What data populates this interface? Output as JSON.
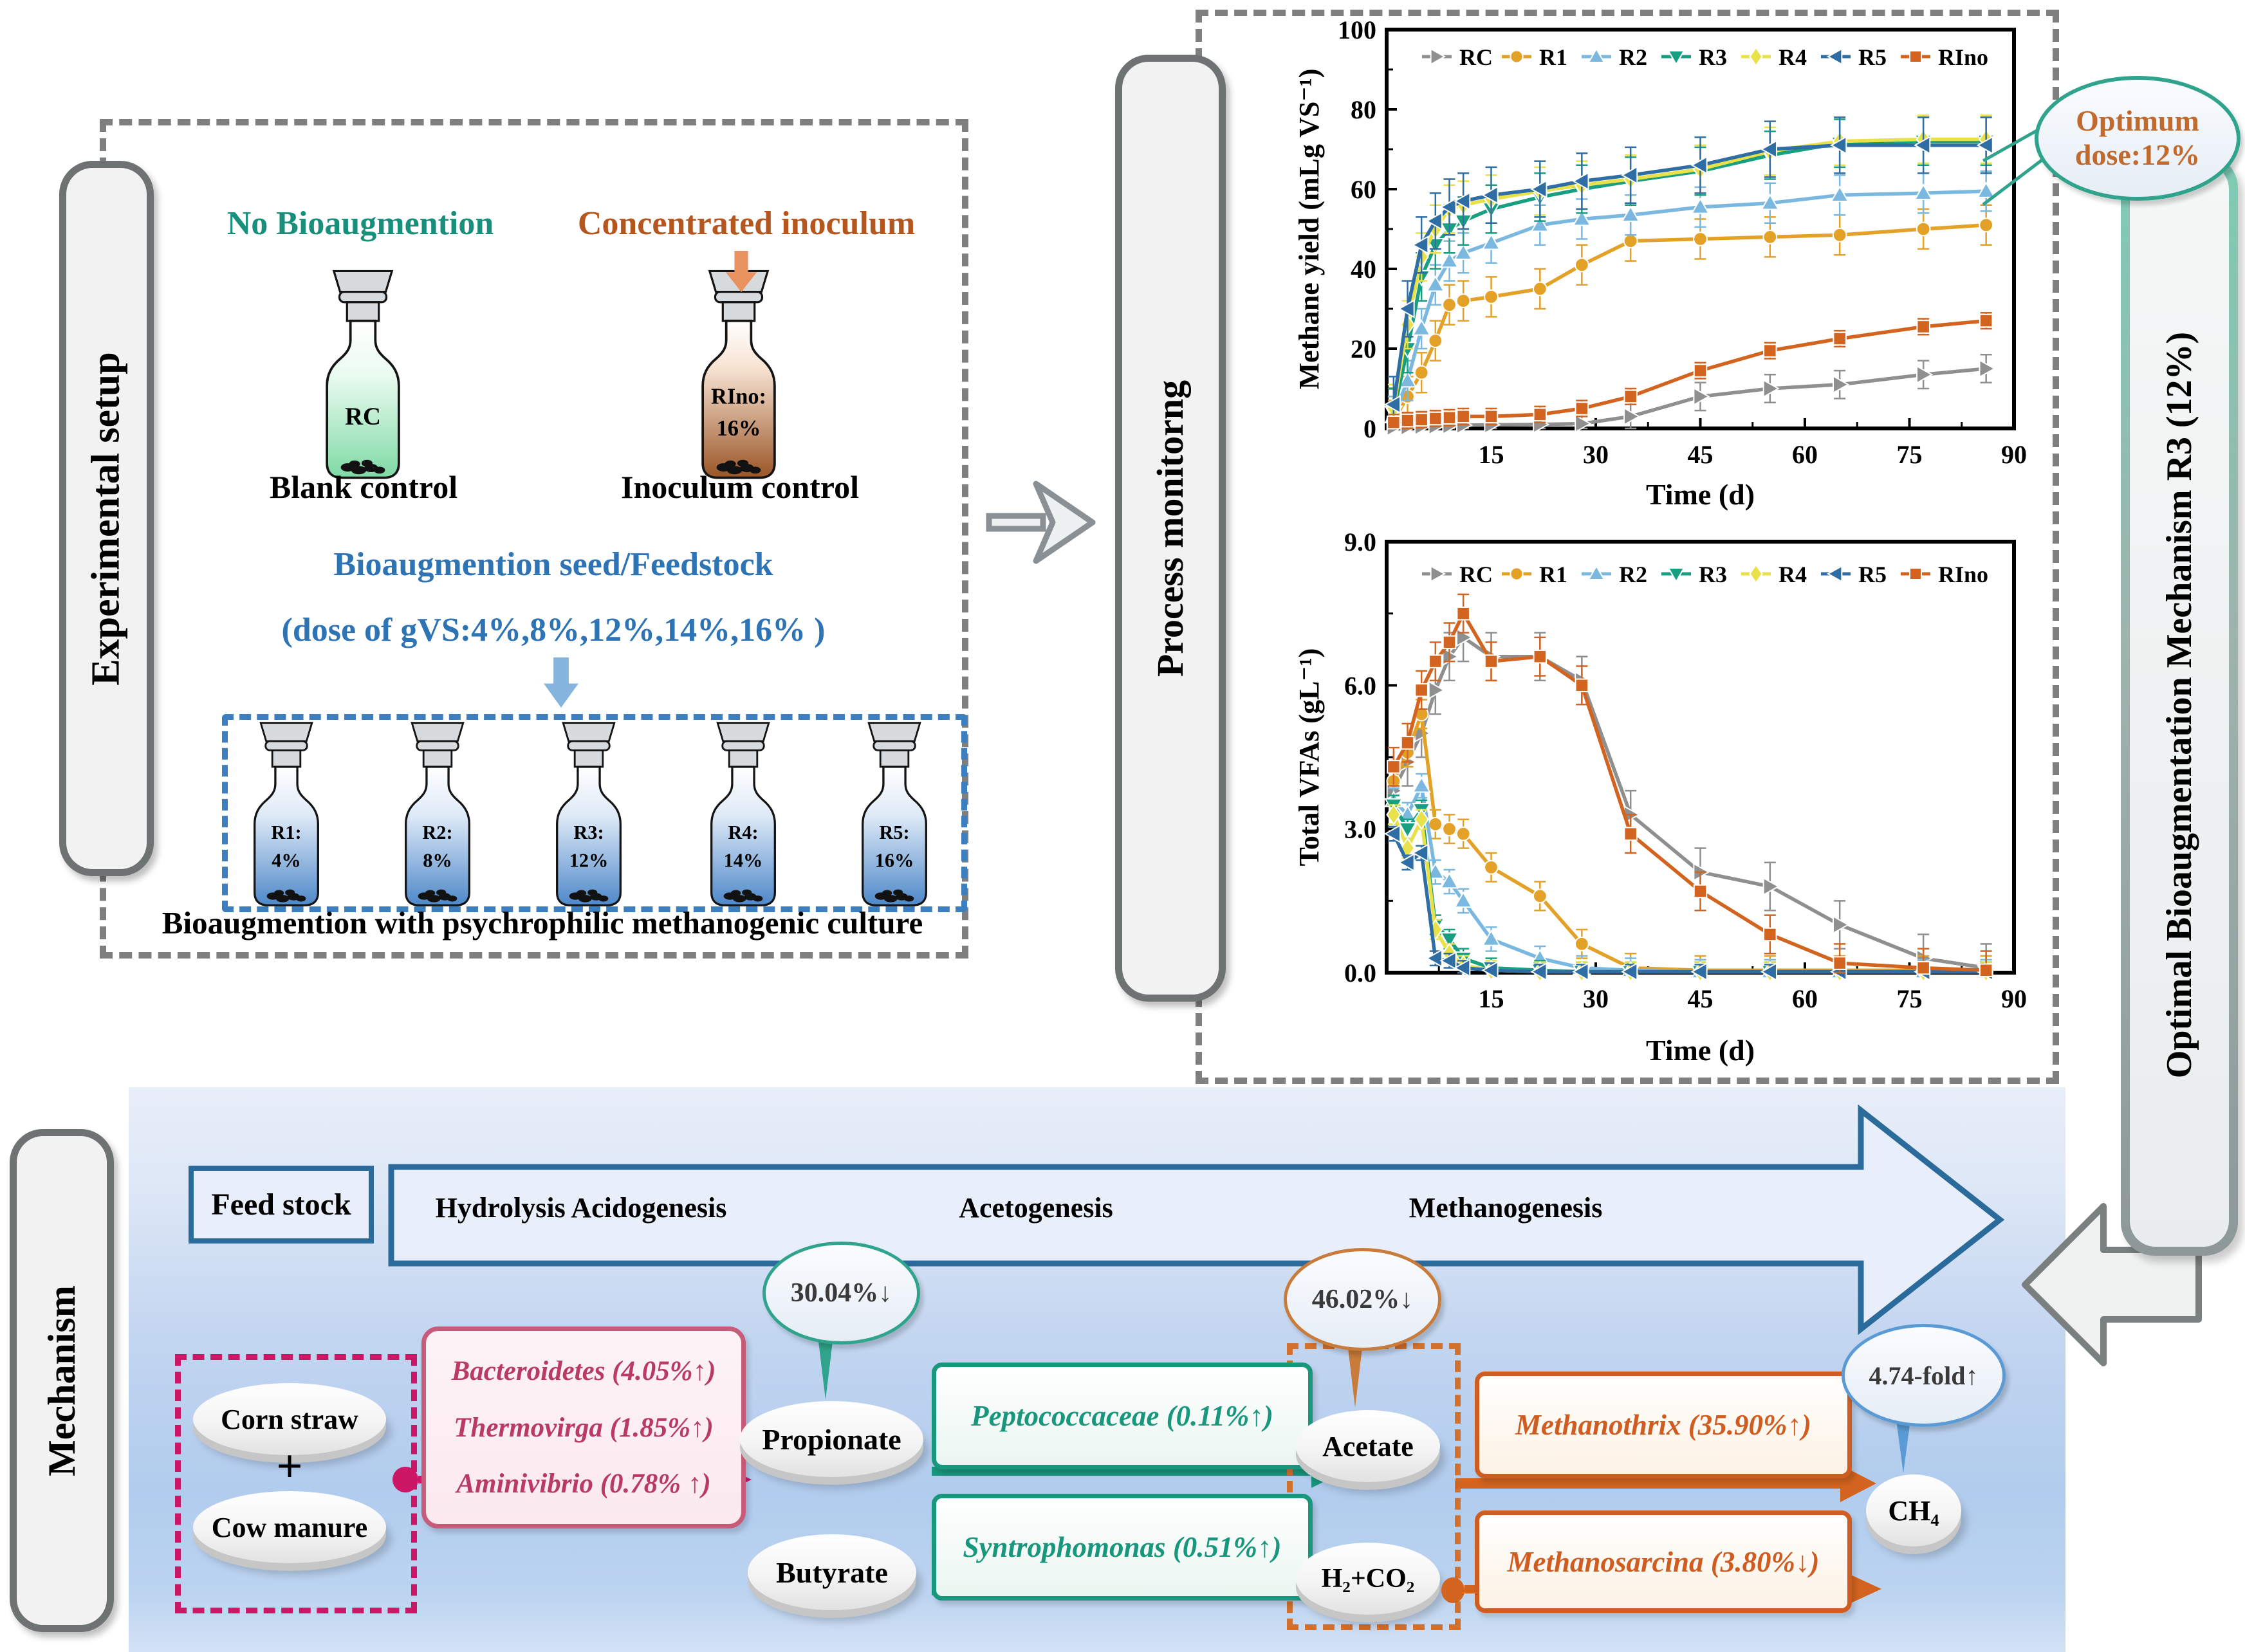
{
  "left_panel": {
    "title": "Experimental setup",
    "no_bioaugmentation": "No Bioaugmention",
    "concentrated_inoculum": "Concentrated inoculum",
    "rc_label": "RC",
    "rino_label1": "RIno:",
    "rino_label2": "16%",
    "blank_caption": "Blank control",
    "inoculum_caption": "Inoculum control",
    "seed_line1": "Bioaugmention seed/Feedstock",
    "seed_line2": "(dose of gVS:4%,8%,12%,14%,16% )",
    "bottles": [
      {
        "name": "R1:",
        "dose": "4%"
      },
      {
        "name": "R2:",
        "dose": "8%"
      },
      {
        "name": "R3:",
        "dose": "12%"
      },
      {
        "name": "R4:",
        "dose": "14%"
      },
      {
        "name": "R5:",
        "dose": "16%"
      }
    ],
    "bottom_caption": "Bioaugmention with psychrophilic methanogenic culture"
  },
  "process_panel": {
    "title": "Process monitorng",
    "optimum_line1": "Optimum",
    "optimum_line2": "dose:12%"
  },
  "right_banner": {
    "label": "Optimal Bioaugmentation Mechanism R3 (12%)"
  },
  "mechanism": {
    "title": "Mechanism",
    "feed_stock": "Feed stock",
    "stages": [
      "Hydrolysis Acidogenesis",
      "Acetogenesis",
      "Methanogenesis"
    ],
    "corn_straw": "Corn straw",
    "plus": "+",
    "cow_manure": "Cow manure",
    "bacteria": [
      "Bacteroidetes (4.05%↑)",
      "Thermovirga (1.85%↑)",
      "Aminivibrio (0.78% ↑)"
    ],
    "propionate": "Propionate",
    "butyrate": "Butyrate",
    "peptococcaceae": "Peptococcaceae (0.11%↑)",
    "syntrophomonas": "Syntrophomonas (0.51%↑)",
    "acetate": "Acetate",
    "h2_co2": "H₂+CO₂",
    "methanothrix": "Methanothrix (35.90%↑)",
    "methanosarcina": "Methanosarcina (3.80%↓)",
    "ch4": "CH₄",
    "callout_propionate": "30.04%↓",
    "callout_acetate": "46.02%↓",
    "callout_ch4": "4.74-fold↑"
  },
  "colors": {
    "teal_heading": "#178f7a",
    "brown_heading": "#b4561e",
    "blue_text": "#2e74b5",
    "stage_blue": "#2b6b9c",
    "green": "#18977c",
    "orange": "#d2641f",
    "magenta": "#cc1767",
    "crimson": "#b93a62"
  },
  "chart_data": [
    {
      "id": "methane",
      "type": "line",
      "title": "",
      "xlabel": "Time (d)",
      "ylabel": "Methane yield (mLg VS⁻¹)",
      "xlim": [
        0,
        90
      ],
      "ylim": [
        0,
        100
      ],
      "xticks": [
        15,
        30,
        45,
        60,
        75,
        90
      ],
      "xminor": [
        7.5,
        22.5,
        37.5,
        52.5,
        67.5,
        82.5
      ],
      "yticks": [
        0,
        20,
        40,
        60,
        80,
        100
      ],
      "ytick_labels": [
        "0",
        "20",
        "40",
        "60",
        "80",
        "100"
      ],
      "yminor": [
        10,
        30,
        50,
        70,
        90
      ],
      "grid": false,
      "legend_position": "top-inside",
      "size": [
        1165,
        780
      ],
      "plot": {
        "l": 150,
        "t": 28,
        "r": 1125,
        "b": 648
      },
      "x": [
        1,
        3,
        5,
        7,
        9,
        11,
        15,
        22,
        28,
        35,
        45,
        55,
        65,
        77,
        86
      ],
      "series": [
        {
          "name": "RC",
          "color": "#8f8f8f",
          "marker": "triangle-right",
          "err": 3.5,
          "values": [
            0.3,
            0.4,
            0.5,
            0.6,
            0.7,
            0.8,
            0.9,
            1.0,
            1.2,
            3.0,
            8.0,
            10.0,
            11.0,
            13.5,
            15.0
          ]
        },
        {
          "name": "R1",
          "color": "#e3a128",
          "marker": "circle",
          "err": 5,
          "values": [
            2,
            8,
            14,
            22,
            31,
            32,
            33,
            35,
            41,
            47,
            47.5,
            48,
            48.5,
            50,
            51
          ]
        },
        {
          "name": "R2",
          "color": "#7ab8e0",
          "marker": "triangle-up",
          "err": 5,
          "values": [
            3,
            12,
            25,
            36,
            42,
            44,
            46.5,
            51,
            52.5,
            53.5,
            55.5,
            56.5,
            58.5,
            59,
            59.5
          ]
        },
        {
          "name": "R3",
          "color": "#189e80",
          "marker": "triangle-down",
          "err": 6,
          "values": [
            4,
            20,
            38,
            46,
            50,
            52,
            55,
            58,
            60,
            62,
            64.5,
            68.5,
            71.5,
            72,
            72
          ]
        },
        {
          "name": "R4",
          "color": "#e8e14a",
          "marker": "diamond",
          "err": 6,
          "values": [
            5,
            26,
            43,
            50,
            55,
            56,
            57.5,
            59.5,
            61,
            62.5,
            65,
            69.5,
            72,
            72.5,
            72.5
          ]
        },
        {
          "name": "R5",
          "color": "#2f6ea5",
          "marker": "triangle-left",
          "err": 7,
          "values": [
            6,
            30,
            46,
            52,
            55.5,
            57,
            58.5,
            60,
            62,
            63.5,
            66,
            70,
            71,
            71,
            71
          ]
        },
        {
          "name": "RIno",
          "color": "#d2641f",
          "marker": "square",
          "err": 2,
          "values": [
            1.5,
            2,
            2.2,
            2.5,
            2.7,
            3,
            3,
            3.5,
            5,
            8,
            14.5,
            19.5,
            22.5,
            25.5,
            27
          ]
        }
      ]
    },
    {
      "id": "vfa",
      "type": "line",
      "title": "",
      "xlabel": "Time (d)",
      "ylabel": "Total VFAs (gL⁻¹)",
      "xlim": [
        0,
        90
      ],
      "ylim": [
        0,
        9
      ],
      "xticks": [
        15,
        30,
        45,
        60,
        75,
        90
      ],
      "xminor": [
        7.5,
        22.5,
        37.5,
        52.5,
        67.5,
        82.5
      ],
      "yticks": [
        0,
        3,
        6,
        9
      ],
      "ytick_labels": [
        "0.0",
        "3.0",
        "6.0",
        "9.0"
      ],
      "yminor": [
        1.5,
        4.5,
        7.5
      ],
      "grid": false,
      "legend_position": "top-inside",
      "size": [
        1165,
        862
      ],
      "plot": {
        "l": 150,
        "t": 42,
        "r": 1125,
        "b": 712
      },
      "x": [
        1,
        3,
        5,
        7,
        9,
        11,
        15,
        22,
        28,
        35,
        45,
        55,
        65,
        77,
        86
      ],
      "series": [
        {
          "name": "RC",
          "color": "#8f8f8f",
          "marker": "triangle-right",
          "err": 0.5,
          "values": [
            3.8,
            4.4,
            5.0,
            5.9,
            6.6,
            7.0,
            6.6,
            6.6,
            6.1,
            3.3,
            2.1,
            1.8,
            1.0,
            0.3,
            0.1
          ]
        },
        {
          "name": "R1",
          "color": "#e3a128",
          "marker": "circle",
          "err": 0.3,
          "values": [
            4.0,
            4.6,
            5.4,
            3.1,
            3.0,
            2.9,
            2.2,
            1.6,
            0.6,
            0.1,
            0.05,
            0.05,
            0.05,
            0.05,
            0.05
          ]
        },
        {
          "name": "R2",
          "color": "#7ab8e0",
          "marker": "triangle-up",
          "err": 0.25,
          "values": [
            3.6,
            3.3,
            3.9,
            2.1,
            1.9,
            1.5,
            0.7,
            0.3,
            0.1,
            0.05,
            0.02,
            0.02,
            0.02,
            0.02,
            0.02
          ]
        },
        {
          "name": "R3",
          "color": "#189e80",
          "marker": "triangle-down",
          "err": 0.2,
          "values": [
            3.5,
            3.0,
            3.4,
            1.0,
            0.7,
            0.3,
            0.1,
            0.05,
            0.02,
            0.02,
            0.02,
            0.02,
            0.02,
            0.02,
            0.02
          ]
        },
        {
          "name": "R4",
          "color": "#e8e14a",
          "marker": "diamond",
          "err": 0.2,
          "values": [
            3.3,
            2.6,
            3.2,
            0.9,
            0.4,
            0.15,
            0.05,
            0.02,
            0.02,
            0.02,
            0.02,
            0.02,
            0.02,
            0.02,
            0.02
          ]
        },
        {
          "name": "R5",
          "color": "#2f6ea5",
          "marker": "triangle-left",
          "err": 0.15,
          "values": [
            2.9,
            2.3,
            2.5,
            0.3,
            0.25,
            0.1,
            0.05,
            0.02,
            0.02,
            0.02,
            0.02,
            0.02,
            0.02,
            0.02,
            0.02
          ]
        },
        {
          "name": "RIno",
          "color": "#d2641f",
          "marker": "square",
          "err": 0.4,
          "values": [
            4.3,
            4.8,
            5.9,
            6.5,
            6.9,
            7.5,
            6.5,
            6.6,
            6.0,
            2.9,
            1.7,
            0.8,
            0.2,
            0.1,
            0.05
          ]
        }
      ]
    }
  ]
}
